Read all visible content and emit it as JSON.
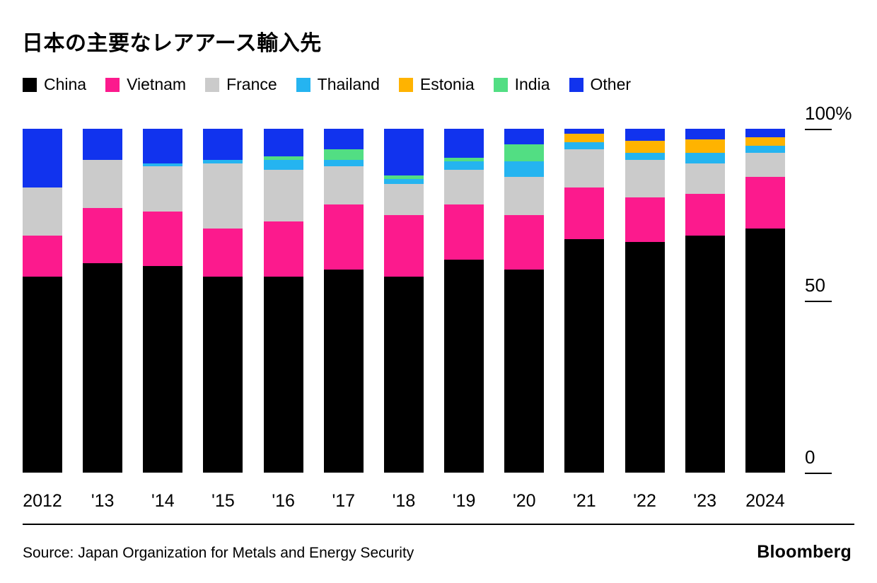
{
  "title": "日本の主要なレアアース輸入先",
  "footer": {
    "source": "Source: Japan Organization for Metals and Energy Security",
    "brand": "Bloomberg"
  },
  "chart_data": {
    "type": "bar",
    "stacked": true,
    "unit": "%",
    "title": "日本の主要なレアアース輸入先",
    "categories": [
      "2012",
      "'13",
      "'14",
      "'15",
      "'16",
      "'17",
      "'18",
      "'19",
      "'20",
      "'21",
      "'22",
      "'23",
      "2024"
    ],
    "series": [
      {
        "name": "China",
        "color": "#000000",
        "values": [
          57,
          61,
          60,
          57,
          57,
          59,
          57,
          62,
          59,
          68,
          67,
          69,
          71
        ]
      },
      {
        "name": "Vietnam",
        "color": "#FC1A8D",
        "values": [
          12,
          16,
          16,
          14,
          16,
          19,
          18,
          16,
          16,
          15,
          13,
          12,
          15
        ]
      },
      {
        "name": "France",
        "color": "#CBCBCB",
        "values": [
          14,
          14,
          13,
          19,
          15,
          11,
          9,
          10,
          11,
          11,
          11,
          9,
          7
        ]
      },
      {
        "name": "Thailand",
        "color": "#25B4F0",
        "values": [
          0,
          0,
          1,
          1,
          3,
          2,
          1.5,
          2.5,
          4.5,
          2,
          2,
          3,
          2
        ]
      },
      {
        "name": "Estonia",
        "color": "#FFB300",
        "values": [
          0,
          0,
          0,
          0,
          0,
          0,
          0,
          0,
          0,
          2.5,
          3.5,
          4,
          2.5
        ]
      },
      {
        "name": "India",
        "color": "#52DE83",
        "values": [
          0,
          0,
          0,
          0,
          1,
          3,
          1,
          1,
          5,
          0,
          0,
          0,
          0
        ]
      },
      {
        "name": "Other",
        "color": "#1133EE",
        "values": [
          17,
          9,
          10,
          9,
          8,
          6,
          13.5,
          8.5,
          4.5,
          1.5,
          3.5,
          3,
          2.5
        ]
      }
    ],
    "ylim": [
      0,
      100
    ],
    "y_ticks": [
      {
        "label": "100%",
        "value": 100
      },
      {
        "label": "50",
        "value": 50
      },
      {
        "label": "0",
        "value": 0
      }
    ],
    "legend_position": "top",
    "grid": false
  }
}
